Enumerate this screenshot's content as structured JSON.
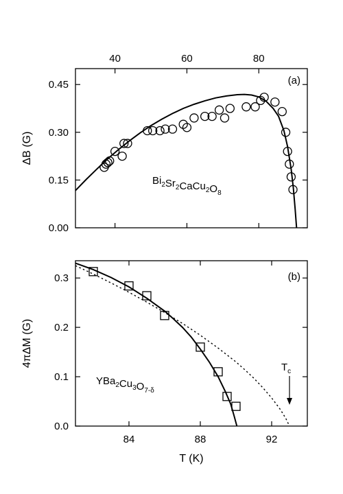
{
  "chart_data": [
    {
      "type": "scatter",
      "panel_label": "(a)",
      "material": {
        "base": "Bi",
        "parts": [
          [
            "Bi",
            "2"
          ],
          [
            "Sr",
            "2"
          ],
          [
            "CaCu",
            "2"
          ],
          [
            "O",
            "8"
          ]
        ]
      },
      "xlabel": "",
      "ylabel": "ΔB (G)",
      "x_ticks_top": [
        40,
        60,
        80
      ],
      "y_ticks": [
        "0.00",
        "0.15",
        "0.30",
        "0.45"
      ],
      "xlim": [
        29,
        93.5
      ],
      "ylim": [
        0,
        0.5
      ],
      "grid": false,
      "series": [
        {
          "marker": "circle",
          "points": [
            [
              37,
              0.19
            ],
            [
              37.5,
              0.2
            ],
            [
              38,
              0.205
            ],
            [
              38.5,
              0.21
            ],
            [
              40,
              0.24
            ],
            [
              42,
              0.225
            ],
            [
              42.5,
              0.265
            ],
            [
              43.5,
              0.265
            ],
            [
              49,
              0.305
            ],
            [
              50.5,
              0.305
            ],
            [
              52.5,
              0.305
            ],
            [
              54,
              0.31
            ],
            [
              56,
              0.31
            ],
            [
              59,
              0.325
            ],
            [
              60,
              0.315
            ],
            [
              62,
              0.345
            ],
            [
              65,
              0.35
            ],
            [
              67,
              0.35
            ],
            [
              69,
              0.37
            ],
            [
              70.5,
              0.345
            ],
            [
              72,
              0.375
            ],
            [
              76.5,
              0.38
            ],
            [
              79,
              0.38
            ],
            [
              80.5,
              0.4
            ],
            [
              81.5,
              0.41
            ],
            [
              84.5,
              0.395
            ],
            [
              86.5,
              0.365
            ],
            [
              87.5,
              0.3
            ],
            [
              88,
              0.24
            ],
            [
              88.5,
              0.2
            ],
            [
              89,
              0.16
            ],
            [
              89.5,
              0.12
            ]
          ]
        },
        {
          "line": "solid",
          "points": [
            [
              29,
              0.117
            ],
            [
              32,
              0.152
            ],
            [
              35,
              0.185
            ],
            [
              38,
              0.217
            ],
            [
              41,
              0.246
            ],
            [
              44,
              0.273
            ],
            [
              47,
              0.298
            ],
            [
              50,
              0.321
            ],
            [
              53,
              0.341
            ],
            [
              56,
              0.359
            ],
            [
              59,
              0.375
            ],
            [
              62,
              0.388
            ],
            [
              65,
              0.399
            ],
            [
              68,
              0.408
            ],
            [
              71,
              0.414
            ],
            [
              74,
              0.418
            ],
            [
              76,
              0.419
            ],
            [
              78,
              0.417
            ],
            [
              80,
              0.411
            ],
            [
              82,
              0.398
            ],
            [
              84,
              0.375
            ],
            [
              85.5,
              0.35
            ],
            [
              87,
              0.305
            ],
            [
              88,
              0.255
            ],
            [
              89,
              0.185
            ],
            [
              89.6,
              0.125
            ],
            [
              90.1,
              0.06
            ],
            [
              90.5,
              0.0
            ]
          ]
        }
      ]
    },
    {
      "type": "scatter",
      "panel_label": "(b)",
      "xlabel": "T (K)",
      "ylabel": "4πΔM (G)",
      "x_ticks": [
        84,
        88,
        92
      ],
      "y_ticks": [
        "0.0",
        "0.1",
        "0.2",
        "0.3"
      ],
      "xlim": [
        81,
        94
      ],
      "ylim": [
        0,
        0.335
      ],
      "grid": false,
      "annotation": "T",
      "annotation_sub": "c",
      "annotation_x": 93,
      "series": [
        {
          "marker": "square",
          "points": [
            [
              82,
              0.313
            ],
            [
              84,
              0.284
            ],
            [
              85,
              0.264
            ],
            [
              86,
              0.224
            ],
            [
              88,
              0.16
            ],
            [
              89,
              0.11
            ],
            [
              89.5,
              0.06
            ],
            [
              90,
              0.04
            ]
          ]
        },
        {
          "line": "solid",
          "points": [
            [
              81,
              0.33
            ],
            [
              82,
              0.317
            ],
            [
              83,
              0.301
            ],
            [
              84,
              0.282
            ],
            [
              85,
              0.259
            ],
            [
              86,
              0.233
            ],
            [
              86.5,
              0.217
            ],
            [
              87,
              0.2
            ],
            [
              87.5,
              0.18
            ],
            [
              88,
              0.156
            ],
            [
              88.5,
              0.13
            ],
            [
              89,
              0.1
            ],
            [
              89.4,
              0.07
            ],
            [
              89.7,
              0.045
            ],
            [
              89.9,
              0.02
            ],
            [
              90.05,
              0.0
            ]
          ]
        },
        {
          "line": "dotted",
          "points": [
            [
              81,
              0.325
            ],
            [
              82,
              0.308
            ],
            [
              83,
              0.29
            ],
            [
              84,
              0.271
            ],
            [
              85,
              0.251
            ],
            [
              86,
              0.23
            ],
            [
              87,
              0.208
            ],
            [
              88,
              0.184
            ],
            [
              89,
              0.158
            ],
            [
              90,
              0.13
            ],
            [
              90.5,
              0.114
            ],
            [
              91,
              0.097
            ],
            [
              91.5,
              0.078
            ],
            [
              92,
              0.057
            ],
            [
              92.5,
              0.033
            ],
            [
              92.8,
              0.015
            ],
            [
              93,
              0.0
            ]
          ]
        }
      ]
    }
  ]
}
